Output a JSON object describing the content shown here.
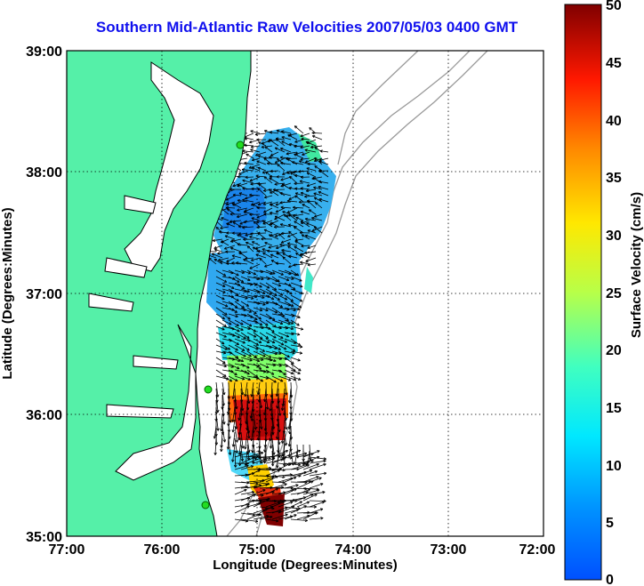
{
  "title": "Southern Mid-Atlantic Raw Velocities 2007/05/03 0400 GMT",
  "x_axis": {
    "label": "Longitude (Degrees:Minutes)",
    "ticks": [
      "77:00",
      "76:00",
      "75:00",
      "74:00",
      "73:00",
      "72:00"
    ]
  },
  "y_axis": {
    "label": "Latitude (Degrees:Minutes)",
    "ticks": [
      "39:00",
      "38:00",
      "37:00",
      "36:00",
      "35:00"
    ]
  },
  "colorbar": {
    "label": "Surface Velocity (cm/s)",
    "ticks": [
      "50",
      "45",
      "40",
      "35",
      "30",
      "25",
      "20",
      "15",
      "10",
      "5",
      "0"
    ],
    "min": 0,
    "max": 50,
    "colormap": "jet"
  },
  "colors": {
    "land": "#55f0a8",
    "title": "#1010ee",
    "grid": "#000000",
    "station": "#22dd22"
  },
  "map_extent": {
    "lon": [
      -77,
      -72
    ],
    "lat": [
      35,
      39
    ]
  },
  "radar_stations": [
    {
      "lon": -75.2,
      "lat": 38.23
    },
    {
      "lon": -75.53,
      "lat": 36.22
    },
    {
      "lon": -75.47,
      "lat": 35.27
    }
  ]
}
